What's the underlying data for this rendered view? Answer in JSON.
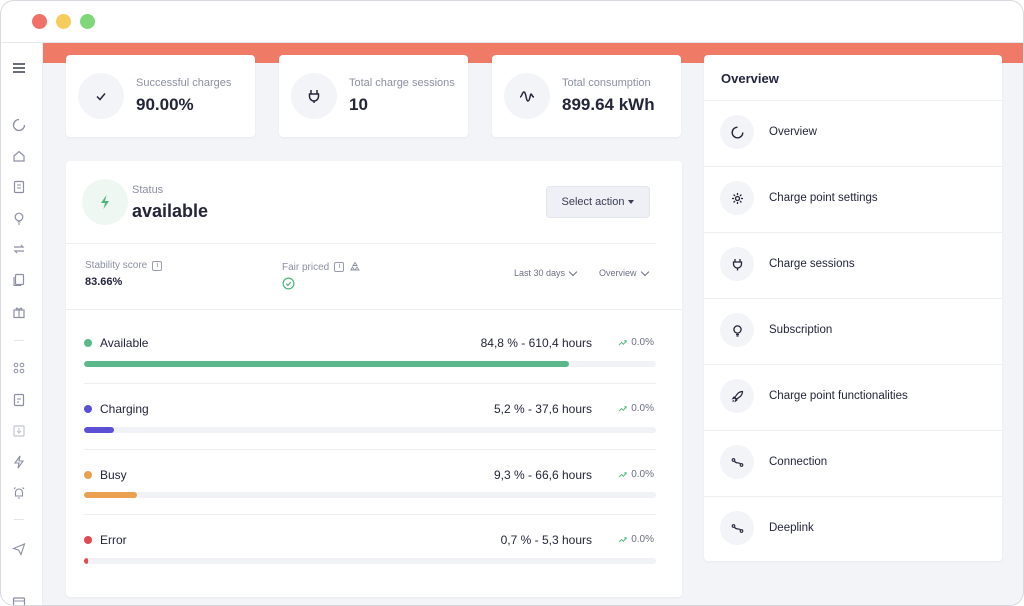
{
  "stats": [
    {
      "label": "Successful charges",
      "value": "90.00%",
      "icon": "check-icon"
    },
    {
      "label": "Total charge sessions",
      "value": "10",
      "icon": "plug-icon"
    },
    {
      "label": "Total consumption",
      "value": "899.64 kWh",
      "icon": "wave-icon"
    }
  ],
  "status": {
    "label": "Status",
    "value": "available",
    "select_action": "Select action",
    "stability_label": "Stability score",
    "stability_value": "83.66%",
    "fair_priced_label": "Fair priced",
    "range_dropdown": "Last 30 days",
    "view_dropdown": "Overview"
  },
  "breakdown": [
    {
      "name": "Available",
      "value": "84,8 % - 610,4 hours",
      "trend": "0.0%",
      "percent": 84.8,
      "color": "#5bb88a"
    },
    {
      "name": "Charging",
      "value": "5,2 % - 37,6 hours",
      "trend": "0.0%",
      "percent": 5.2,
      "color": "#5b4fd6"
    },
    {
      "name": "Busy",
      "value": "9,3 % - 66,6 hours",
      "trend": "0.0%",
      "percent": 9.3,
      "color": "#e9a04f"
    },
    {
      "name": "Error",
      "value": "0,7 % - 5,3 hours",
      "trend": "0.0%",
      "percent": 0.7,
      "color": "#e5484d"
    }
  ],
  "overview": {
    "title": "Overview",
    "items": [
      {
        "label": "Overview",
        "icon": "overview-icon"
      },
      {
        "label": "Charge point settings",
        "icon": "gear-icon"
      },
      {
        "label": "Charge sessions",
        "icon": "plug-icon"
      },
      {
        "label": "Subscription",
        "icon": "bulb-icon"
      },
      {
        "label": "Charge point functionalities",
        "icon": "rocket-icon"
      },
      {
        "label": "Connection",
        "icon": "connection-icon"
      },
      {
        "label": "Deeplink",
        "icon": "link-icon"
      }
    ]
  },
  "colors": {
    "accent": "#ef7a66",
    "available": "#5bb88a",
    "charging": "#5b4fd6",
    "busy": "#e9a04f",
    "error": "#e5484d"
  }
}
